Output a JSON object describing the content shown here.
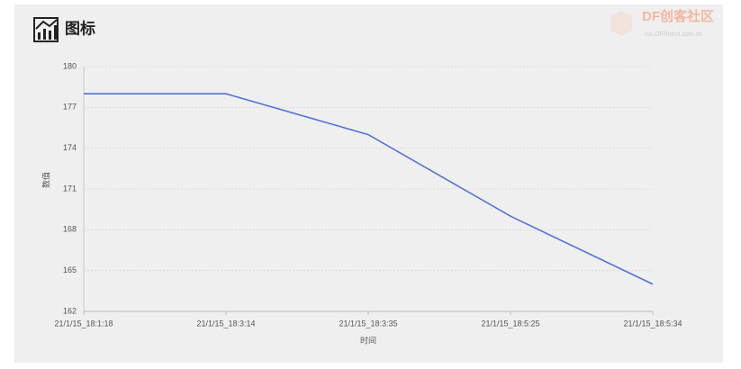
{
  "header": {
    "title": "图标",
    "watermark": "DF创客社区",
    "watermark_url": "mc.DFRobot.com.cn"
  },
  "chart_data": {
    "type": "line",
    "categories": [
      "21/1/15_18:1:18",
      "21/1/15_18:3:14",
      "21/1/15_18:3:35",
      "21/1/15_18:5:25",
      "21/1/15_18:5:34"
    ],
    "values": [
      178,
      178,
      175,
      169,
      164
    ],
    "color": "#4f74d6",
    "ylim": [
      162,
      180
    ],
    "yticks": [
      162,
      165,
      168,
      171,
      174,
      177,
      180
    ],
    "xlabel": "时间",
    "ylabel": "数值",
    "grid": true
  }
}
